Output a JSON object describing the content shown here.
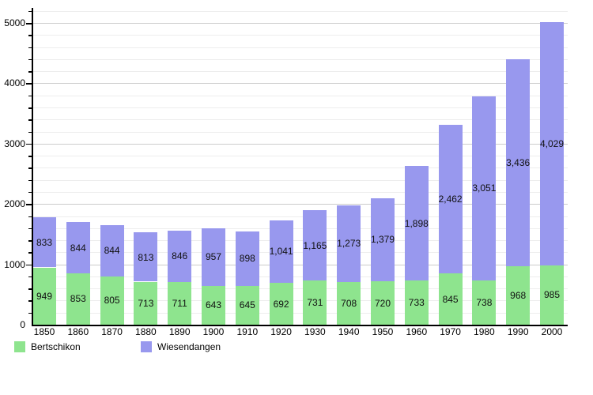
{
  "chart_data": {
    "type": "bar",
    "stacked": true,
    "title": "",
    "xlabel": "",
    "ylabel": "",
    "categories": [
      "1850",
      "1860",
      "1870",
      "1880",
      "1890",
      "1900",
      "1910",
      "1920",
      "1930",
      "1940",
      "1950",
      "1960",
      "1970",
      "1980",
      "1990",
      "2000"
    ],
    "series": [
      {
        "name": "Bertschikon",
        "color": "#8ee48e",
        "values": [
          949,
          853,
          805,
          713,
          711,
          643,
          645,
          692,
          731,
          708,
          720,
          733,
          845,
          738,
          968,
          985
        ]
      },
      {
        "name": "Wiesendangen",
        "color": "#9898ee",
        "values": [
          833,
          844,
          844,
          813,
          846,
          957,
          898,
          1041,
          1165,
          1273,
          1379,
          1898,
          2462,
          3051,
          3436,
          4029
        ]
      }
    ],
    "ylim": [
      0,
      5200
    ],
    "y_major_step": 1000,
    "y_minor_step": 200,
    "y_tick_labels": [
      "0",
      "1000",
      "2000",
      "3000",
      "4000",
      "5000"
    ],
    "grid": true,
    "value_labels": "inside-segment, thousands separated with commas",
    "legend_position": "bottom-left",
    "colors": {
      "grid_major": "#cccccc",
      "grid_minor": "#ededed",
      "axis": "#000000",
      "background": "#ffffff",
      "label_text": "#111111"
    }
  }
}
